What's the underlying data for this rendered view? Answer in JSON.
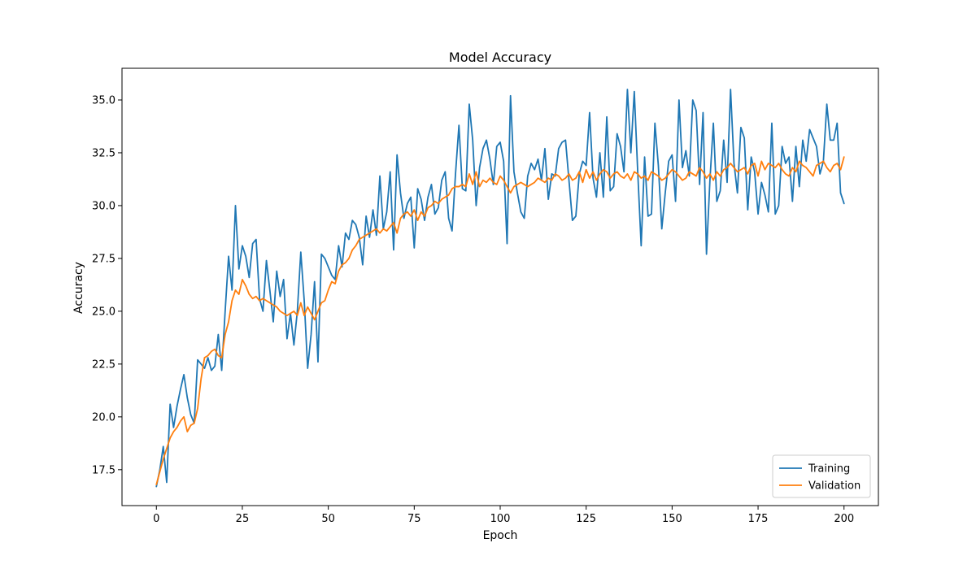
{
  "chart_data": {
    "type": "line",
    "title": "Model Accuracy",
    "xlabel": "Epoch",
    "ylabel": "Accuracy",
    "xlim": [
      -10,
      210
    ],
    "ylim": [
      15.8,
      36.5
    ],
    "xticks": [
      0,
      25,
      50,
      75,
      100,
      125,
      150,
      175,
      200
    ],
    "yticks": [
      17.5,
      20.0,
      22.5,
      25.0,
      27.5,
      30.0,
      32.5,
      35.0
    ],
    "ytick_labels": [
      "17.5",
      "20.0",
      "22.5",
      "25.0",
      "27.5",
      "30.0",
      "32.5",
      "35.0"
    ],
    "grid": false,
    "legend_position": "lower-right",
    "series": [
      {
        "name": "Training",
        "color": "#1f77b4",
        "values": [
          16.7,
          17.5,
          18.6,
          16.9,
          20.6,
          19.5,
          20.5,
          21.3,
          22.0,
          20.9,
          20.1,
          19.7,
          22.7,
          22.5,
          22.3,
          22.8,
          22.2,
          22.4,
          23.9,
          22.2,
          25.0,
          27.6,
          26.0,
          30.0,
          27.0,
          28.1,
          27.6,
          26.6,
          28.2,
          28.4,
          25.6,
          25.0,
          27.4,
          26.0,
          24.5,
          26.9,
          25.7,
          26.5,
          23.7,
          24.9,
          23.4,
          25.0,
          27.8,
          25.5,
          22.3,
          23.9,
          26.4,
          22.6,
          27.7,
          27.5,
          27.1,
          26.7,
          26.5,
          28.1,
          27.1,
          28.7,
          28.4,
          29.3,
          29.1,
          28.5,
          27.2,
          29.5,
          28.5,
          29.8,
          28.6,
          31.4,
          28.9,
          29.7,
          31.6,
          27.9,
          32.4,
          30.6,
          29.4,
          30.1,
          30.4,
          28.0,
          30.8,
          30.3,
          29.3,
          30.4,
          31.0,
          29.6,
          29.9,
          31.2,
          31.6,
          29.4,
          28.8,
          31.5,
          33.8,
          30.8,
          30.7,
          34.8,
          33.1,
          30.0,
          31.8,
          32.7,
          33.1,
          32.2,
          31.0,
          32.8,
          33.0,
          32.1,
          28.2,
          35.2,
          31.6,
          30.6,
          29.7,
          29.4,
          31.4,
          32.0,
          31.7,
          32.2,
          31.2,
          32.7,
          30.3,
          31.5,
          31.4,
          32.7,
          33.0,
          33.1,
          31.2,
          29.3,
          29.5,
          31.5,
          32.1,
          31.9,
          34.4,
          31.3,
          30.4,
          32.5,
          30.4,
          34.2,
          30.7,
          30.9,
          33.4,
          32.8,
          31.6,
          35.5,
          32.5,
          35.4,
          31.6,
          28.1,
          32.3,
          29.5,
          29.6,
          33.9,
          31.9,
          28.9,
          30.6,
          32.1,
          32.4,
          30.2,
          35.0,
          31.8,
          32.6,
          31.4,
          35.0,
          34.5,
          31.0,
          34.4,
          27.7,
          31.2,
          33.9,
          30.2,
          30.7,
          33.1,
          31.1,
          35.5,
          32.0,
          30.6,
          33.7,
          33.2,
          29.8,
          32.3,
          31.6,
          29.6,
          31.1,
          30.5,
          29.7,
          33.9,
          29.6,
          30.0,
          32.8,
          32.0,
          32.3,
          30.2,
          32.8,
          30.9,
          33.1,
          32.1,
          33.6,
          33.2,
          32.8,
          31.5,
          32.1,
          34.8,
          33.1,
          33.1,
          33.9,
          30.6,
          30.1
        ]
      },
      {
        "name": "Validation",
        "color": "#ff7f0e",
        "values": [
          16.8,
          17.4,
          18.0,
          18.5,
          19.0,
          19.3,
          19.5,
          19.8,
          20.0,
          19.3,
          19.6,
          19.7,
          20.4,
          21.8,
          22.8,
          22.9,
          23.1,
          23.2,
          22.9,
          22.8,
          23.9,
          24.5,
          25.5,
          26.0,
          25.8,
          26.5,
          26.2,
          25.8,
          25.6,
          25.7,
          25.5,
          25.6,
          25.5,
          25.4,
          25.3,
          25.2,
          25.0,
          24.9,
          24.8,
          24.9,
          25.0,
          24.8,
          25.4,
          24.8,
          25.2,
          24.9,
          24.6,
          25.0,
          25.4,
          25.5,
          26.0,
          26.4,
          26.3,
          26.9,
          27.2,
          27.3,
          27.5,
          27.9,
          28.1,
          28.4,
          28.5,
          28.6,
          28.7,
          28.8,
          28.9,
          28.7,
          28.9,
          28.8,
          29.0,
          29.2,
          28.7,
          29.4,
          29.6,
          29.7,
          29.5,
          29.8,
          29.3,
          29.7,
          29.5,
          29.9,
          30.0,
          30.2,
          30.1,
          30.3,
          30.4,
          30.5,
          30.8,
          30.9,
          30.9,
          31.0,
          30.9,
          31.5,
          31.0,
          31.6,
          30.9,
          31.2,
          31.1,
          31.3,
          31.1,
          31.0,
          31.4,
          31.2,
          30.9,
          30.6,
          30.9,
          31.0,
          31.1,
          31.0,
          30.9,
          31.0,
          31.1,
          31.3,
          31.2,
          31.1,
          31.3,
          31.2,
          31.5,
          31.4,
          31.2,
          31.3,
          31.5,
          31.2,
          31.3,
          31.6,
          31.1,
          31.7,
          31.3,
          31.6,
          31.2,
          31.5,
          31.7,
          31.6,
          31.3,
          31.5,
          31.6,
          31.4,
          31.3,
          31.5,
          31.2,
          31.6,
          31.5,
          31.3,
          31.4,
          31.2,
          31.6,
          31.5,
          31.4,
          31.2,
          31.3,
          31.5,
          31.7,
          31.6,
          31.4,
          31.2,
          31.3,
          31.6,
          31.5,
          31.4,
          31.8,
          31.6,
          31.3,
          31.5,
          31.2,
          31.6,
          31.4,
          31.7,
          31.8,
          32.0,
          31.8,
          31.6,
          31.7,
          31.8,
          31.5,
          31.9,
          32.0,
          31.4,
          32.1,
          31.7,
          32.0,
          31.9,
          31.8,
          32.0,
          31.7,
          31.5,
          31.4,
          31.8,
          31.6,
          32.1,
          31.9,
          31.8,
          31.6,
          31.4,
          31.9,
          32.0,
          32.1,
          31.8,
          31.6,
          31.9,
          32.0,
          31.7,
          32.3
        ]
      }
    ]
  }
}
